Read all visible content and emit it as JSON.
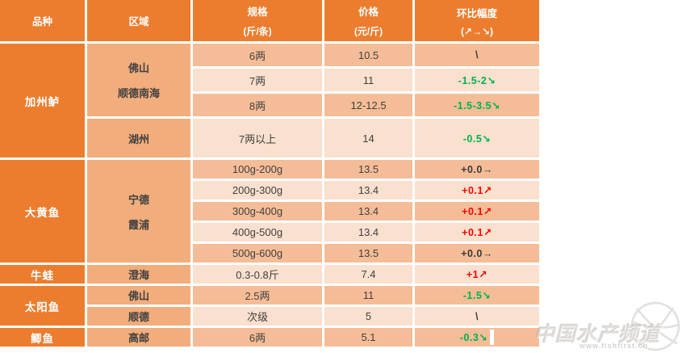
{
  "colors": {
    "header_orange": "#EC7D2F",
    "region_orange": "#F2AD7C",
    "row_dark": "#F5BD97",
    "row_light": "#FAE0CE",
    "up_red": "#FF0000",
    "down_green": "#00B050",
    "text_dark": "#404040"
  },
  "table": {
    "header": {
      "columns": [
        {
          "label": "品种",
          "sub": ""
        },
        {
          "label": "区域",
          "sub": ""
        },
        {
          "label": "规格",
          "sub": "(斤/条)"
        },
        {
          "label": "价格",
          "sub": "(元/斤)"
        },
        {
          "label": "环比幅度",
          "sub": "(↗→↘)"
        }
      ]
    },
    "varieties": [
      {
        "name": "加州鲈",
        "span": 4
      },
      {
        "name": "大黄鱼",
        "span": 5
      },
      {
        "name": "牛蛙",
        "span": 1
      },
      {
        "name": "太阳鱼",
        "span": 2
      },
      {
        "name": "鲫鱼",
        "span": 1
      }
    ],
    "regions": [
      {
        "lines": [
          "佛山",
          "顺德南海"
        ],
        "span": 3
      },
      {
        "lines": [
          "湖州"
        ],
        "span": 1
      },
      {
        "lines": [
          "宁德",
          "霞浦"
        ],
        "span": 5
      },
      {
        "lines": [
          "澄海"
        ],
        "span": 1
      },
      {
        "lines": [
          "佛山"
        ],
        "span": 1
      },
      {
        "lines": [
          "顺德"
        ],
        "span": 1
      },
      {
        "lines": [
          "高邮"
        ],
        "span": 1
      }
    ],
    "rows": [
      {
        "spec": "6两",
        "price": "10.5",
        "change": "\\",
        "trend": "flat",
        "cursor": false
      },
      {
        "spec": "7两",
        "price": "11",
        "change": "-1.5-2↘",
        "trend": "down",
        "cursor": false
      },
      {
        "spec": "8两",
        "price": "12-12.5",
        "change": "-1.5-3.5↘",
        "trend": "down",
        "cursor": false
      },
      {
        "spec": "7两以上",
        "price": "14",
        "change": "-0.5↘",
        "trend": "down",
        "cursor": false
      },
      {
        "spec": "100g-200g",
        "price": "13.5",
        "change": "+0.0→",
        "trend": "flat",
        "cursor": false
      },
      {
        "spec": "200g-300g",
        "price": "13.4",
        "change": "+0.1↗",
        "trend": "up",
        "cursor": false
      },
      {
        "spec": "300g-400g",
        "price": "13.4",
        "change": "+0.1↗",
        "trend": "up",
        "cursor": false
      },
      {
        "spec": "400g-500g",
        "price": "13.4",
        "change": "+0.1↗",
        "trend": "up",
        "cursor": false
      },
      {
        "spec": "500g-600g",
        "price": "13.5",
        "change": "+0.0→",
        "trend": "flat",
        "cursor": false
      },
      {
        "spec": "0.3-0.8斤",
        "price": "7.4",
        "change": "+1↗",
        "trend": "up",
        "cursor": false
      },
      {
        "spec": "2.5两",
        "price": "11",
        "change": "-1.5↘",
        "trend": "down",
        "cursor": false
      },
      {
        "spec": "次级",
        "price": "5",
        "change": "\\",
        "trend": "flat",
        "cursor": false
      },
      {
        "spec": "6两",
        "price": "5.1",
        "change": "-0.3↘",
        "trend": "down",
        "cursor": true
      }
    ]
  },
  "watermark": {
    "title": "中国水产频道",
    "url": "www.fishfirst.cn"
  }
}
